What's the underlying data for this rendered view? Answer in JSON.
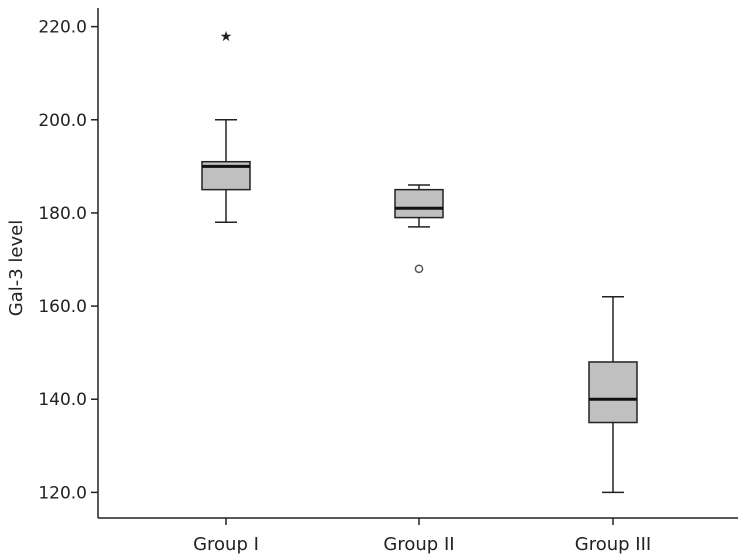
{
  "chart_data": {
    "type": "box",
    "title": "",
    "xlabel": "",
    "ylabel": "Gal-3 level",
    "ylim": [
      114.5,
      224
    ],
    "yticks": [
      120.0,
      140.0,
      160.0,
      180.0,
      200.0,
      220.0
    ],
    "ytick_labels": [
      "120.0",
      "140.0",
      "160.0",
      "180.0",
      "200.0",
      "220.0"
    ],
    "grid": false,
    "categories": [
      "Group I",
      "Group II",
      "Group III"
    ],
    "boxes": [
      {
        "category": "Group I",
        "whisker_low": 178,
        "q1": 185,
        "median": 190,
        "q3": 191,
        "whisker_high": 200,
        "outliers": [
          {
            "value": 218,
            "marker": "star"
          }
        ]
      },
      {
        "category": "Group II",
        "whisker_low": 177,
        "q1": 179,
        "median": 181,
        "q3": 185,
        "whisker_high": 186,
        "outliers": [
          {
            "value": 168,
            "marker": "circle"
          }
        ]
      },
      {
        "category": "Group III",
        "whisker_low": 120,
        "q1": 135,
        "median": 140,
        "q3": 148,
        "whisker_high": 162,
        "outliers": []
      }
    ],
    "box_fill": "#c0c0c0",
    "line_color": "#222222"
  }
}
